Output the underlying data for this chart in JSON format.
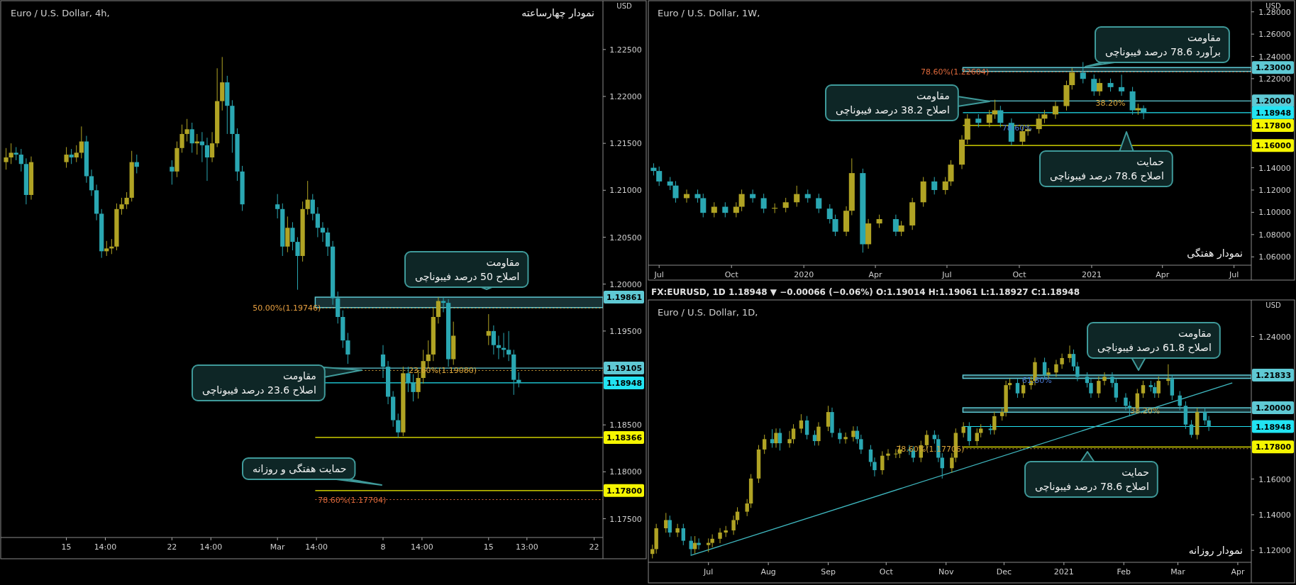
{
  "chart_data": [
    {
      "type": "candlestick",
      "title": "Euro / U.S. Dollar, 4h,",
      "subtitle": "نمودار چهارساعته",
      "ylabel": "USD",
      "x": [
        "2021-02-11T00:00",
        "2021-02-11T08:00",
        "2021-02-11T16:00",
        "2021-02-12T00:00",
        "2021-02-12T08:00",
        "2021-02-12T16:00",
        "2021-02-15T00:00",
        "2021-02-15T08:00",
        "2021-02-15T16:00",
        "2021-02-16T00:00",
        "2021-02-16T08:00",
        "2021-02-16T16:00",
        "2021-02-17T00:00",
        "2021-02-17T08:00",
        "2021-02-17T16:00",
        "2021-02-18T00:00",
        "2021-02-18T08:00",
        "2021-02-18T16:00",
        "2021-02-19T00:00",
        "2021-02-19T08:00",
        "2021-02-19T16:00",
        "2021-02-22T00:00",
        "2021-02-22T08:00",
        "2021-02-22T16:00",
        "2021-02-23T00:00",
        "2021-02-23T08:00",
        "2021-02-23T16:00",
        "2021-02-24T00:00",
        "2021-02-24T08:00",
        "2021-02-24T16:00",
        "2021-02-25T00:00",
        "2021-02-25T08:00",
        "2021-02-25T16:00",
        "2021-02-26T00:00",
        "2021-02-26T08:00",
        "2021-02-26T16:00",
        "2021-03-01T00:00",
        "2021-03-01T08:00",
        "2021-03-01T16:00",
        "2021-03-02T00:00",
        "2021-03-02T08:00",
        "2021-03-02T16:00",
        "2021-03-03T00:00",
        "2021-03-03T08:00",
        "2021-03-03T16:00",
        "2021-03-04T00:00",
        "2021-03-04T08:00",
        "2021-03-04T16:00",
        "2021-03-05T00:00",
        "2021-03-05T08:00",
        "2021-03-05T16:00",
        "2021-03-08T00:00",
        "2021-03-08T08:00",
        "2021-03-08T16:00",
        "2021-03-09T00:00",
        "2021-03-09T08:00",
        "2021-03-09T16:00",
        "2021-03-10T00:00",
        "2021-03-10T08:00",
        "2021-03-10T16:00",
        "2021-03-11T00:00",
        "2021-03-11T08:00",
        "2021-03-11T16:00",
        "2021-03-12T00:00",
        "2021-03-12T08:00",
        "2021-03-12T16:00",
        "2021-03-15T00:00",
        "2021-03-15T08:00",
        "2021-03-15T16:00",
        "2021-03-16T00:00",
        "2021-03-16T08:00",
        "2021-03-16T16:00",
        "2021-03-17T00:00"
      ],
      "ohlc": [
        [
          1.213,
          1.2145,
          1.2122,
          1.2135
        ],
        [
          1.2135,
          1.215,
          1.2128,
          1.214
        ],
        [
          1.214,
          1.2146,
          1.2132,
          1.2138
        ],
        [
          1.2138,
          1.2144,
          1.212,
          1.2128
        ],
        [
          1.2128,
          1.2134,
          1.2085,
          1.2095
        ],
        [
          1.2095,
          1.2136,
          1.209,
          1.213
        ],
        [
          1.213,
          1.2146,
          1.2124,
          1.2138
        ],
        [
          1.2138,
          1.2144,
          1.2128,
          1.2135
        ],
        [
          1.2135,
          1.2148,
          1.213,
          1.214
        ],
        [
          1.214,
          1.2168,
          1.2134,
          1.2152
        ],
        [
          1.2152,
          1.2158,
          1.2108,
          1.2115
        ],
        [
          1.2115,
          1.2122,
          1.2094,
          1.21
        ],
        [
          1.21,
          1.2106,
          1.2068,
          1.2075
        ],
        [
          1.2075,
          1.208,
          1.2028,
          1.2035
        ],
        [
          1.2035,
          1.2046,
          1.203,
          1.2038
        ],
        [
          1.2038,
          1.2048,
          1.2032,
          1.204
        ],
        [
          1.204,
          1.2086,
          1.2036,
          1.208
        ],
        [
          1.208,
          1.2092,
          1.2074,
          1.2085
        ],
        [
          1.2085,
          1.2098,
          1.208,
          1.2092
        ],
        [
          1.2092,
          1.2142,
          1.2088,
          1.213
        ],
        [
          1.213,
          1.2138,
          1.2118,
          1.2125
        ],
        [
          1.2125,
          1.2132,
          1.2106,
          1.212
        ],
        [
          1.212,
          1.2152,
          1.2114,
          1.2145
        ],
        [
          1.2145,
          1.217,
          1.214,
          1.216
        ],
        [
          1.216,
          1.2176,
          1.2152,
          1.2165
        ],
        [
          1.2165,
          1.2172,
          1.214,
          1.215
        ],
        [
          1.215,
          1.216,
          1.2138,
          1.2152
        ],
        [
          1.2152,
          1.2162,
          1.213,
          1.2148
        ],
        [
          1.2148,
          1.2156,
          1.211,
          1.2135
        ],
        [
          1.2135,
          1.2162,
          1.213,
          1.215
        ],
        [
          1.215,
          1.223,
          1.2146,
          1.2195
        ],
        [
          1.2195,
          1.2242,
          1.2185,
          1.2215
        ],
        [
          1.2215,
          1.2222,
          1.216,
          1.219
        ],
        [
          1.219,
          1.2196,
          1.214,
          1.216
        ],
        [
          1.216,
          1.2166,
          1.211,
          1.212
        ],
        [
          1.212,
          1.2126,
          1.2078,
          1.2085
        ],
        [
          1.2085,
          1.2096,
          1.207,
          1.208
        ],
        [
          1.208,
          1.2086,
          1.203,
          1.204
        ],
        [
          1.204,
          1.2072,
          1.2034,
          1.206
        ],
        [
          1.206,
          1.2066,
          1.2036,
          1.2045
        ],
        [
          1.2045,
          1.205,
          1.1994,
          1.203
        ],
        [
          1.203,
          1.2088,
          1.2024,
          1.208
        ],
        [
          1.208,
          1.211,
          1.2074,
          1.209
        ],
        [
          1.209,
          1.2096,
          1.2068,
          1.2075
        ],
        [
          1.2075,
          1.2082,
          1.205,
          1.206
        ],
        [
          1.206,
          1.2066,
          1.2045,
          1.2055
        ],
        [
          1.2055,
          1.206,
          1.203,
          1.204
        ],
        [
          1.204,
          1.2046,
          1.1978,
          1.1985
        ],
        [
          1.1985,
          1.1992,
          1.1958,
          1.1965
        ],
        [
          1.1965,
          1.1972,
          1.1932,
          1.194
        ],
        [
          1.194,
          1.1948,
          1.1915,
          1.1925
        ],
        [
          1.1925,
          1.1935,
          1.19,
          1.1912
        ],
        [
          1.1912,
          1.1918,
          1.1872,
          1.188
        ],
        [
          1.188,
          1.1886,
          1.1848,
          1.1855
        ],
        [
          1.1855,
          1.1862,
          1.18366,
          1.1842
        ],
        [
          1.1842,
          1.1912,
          1.1838,
          1.1905
        ],
        [
          1.1905,
          1.1912,
          1.1885,
          1.1895
        ],
        [
          1.1895,
          1.1904,
          1.1875,
          1.1885
        ],
        [
          1.1885,
          1.1908,
          1.1878,
          1.19
        ],
        [
          1.19,
          1.193,
          1.1894,
          1.1918
        ],
        [
          1.1918,
          1.194,
          1.191,
          1.1925
        ],
        [
          1.1925,
          1.1975,
          1.1918,
          1.1965
        ],
        [
          1.1965,
          1.19861,
          1.1958,
          1.1982
        ],
        [
          1.1982,
          1.1986,
          1.197,
          1.198
        ],
        [
          1.198,
          1.1984,
          1.1912,
          1.192
        ],
        [
          1.192,
          1.196,
          1.1914,
          1.1945
        ],
        [
          1.1945,
          1.1968,
          1.1935,
          1.195
        ],
        [
          1.195,
          1.1956,
          1.1925,
          1.1935
        ],
        [
          1.1935,
          1.1945,
          1.192,
          1.1932
        ],
        [
          1.1932,
          1.1948,
          1.1922,
          1.193
        ],
        [
          1.193,
          1.195,
          1.1918,
          1.1925
        ],
        [
          1.1925,
          1.193,
          1.1882,
          1.1898
        ],
        [
          1.1898,
          1.1906,
          1.189,
          1.18948
        ]
      ],
      "xlim": [
        "2021-02-10T20:00",
        "2021-03-22T14:00"
      ],
      "xticks": [
        {
          "value": "2021-02-15",
          "label": "15"
        },
        {
          "value": "2021-02-17T14:00",
          "label": "14:00"
        },
        {
          "value": "2021-02-22",
          "label": "22"
        },
        {
          "value": "2021-02-24T14:00",
          "label": "14:00"
        },
        {
          "value": "2021-03-01",
          "label": "Mar"
        },
        {
          "value": "2021-03-03T14:00",
          "label": "14:00"
        },
        {
          "value": "2021-03-08",
          "label": "8"
        },
        {
          "value": "2021-03-10T14:00",
          "label": "14:00"
        },
        {
          "value": "2021-03-15",
          "label": "15"
        },
        {
          "value": "2021-03-17T13:00",
          "label": "13:00"
        },
        {
          "value": "2021-03-22",
          "label": "22"
        }
      ],
      "ylim": [
        1.173,
        1.2302
      ],
      "yticks": [
        {
          "value": 1.175,
          "label": "1.17500"
        },
        {
          "value": 1.18,
          "label": "1.18000"
        },
        {
          "value": 1.185,
          "label": "1.18500"
        },
        {
          "value": 1.195,
          "label": "1.19500"
        },
        {
          "value": 1.2,
          "label": "1.20000"
        },
        {
          "value": 1.205,
          "label": "1.20500"
        },
        {
          "value": 1.21,
          "label": "1.21000"
        },
        {
          "value": 1.215,
          "label": "1.21500"
        },
        {
          "value": 1.22,
          "label": "1.22000"
        },
        {
          "value": 1.225,
          "label": "1.22500"
        }
      ],
      "bands": [
        {
          "axis": "y",
          "from": 1.1975,
          "to": 1.19861,
          "label": "1.19861",
          "color": "#5fc9d4"
        }
      ],
      "ref_lines": [
        {
          "axis": "y",
          "value": 1.19105,
          "label": "1.19105",
          "color": "#5fc9d4",
          "line_style": "solid"
        },
        {
          "axis": "y",
          "value": 1.18948,
          "label": "1.18948",
          "color": "#22e3f2",
          "line_style": "solid"
        },
        {
          "axis": "y",
          "value": 1.18366,
          "label": "1.18366",
          "color": "#f5f500",
          "line_style": "solid"
        },
        {
          "axis": "y",
          "value": 1.178,
          "label": "1.17800",
          "color": "#f5f500",
          "line_style": "solid"
        },
        {
          "axis": "y",
          "value": 1.19746,
          "label": "50.00%(1.19746)",
          "color": "#e8a040",
          "line_style": "dotted"
        },
        {
          "axis": "y",
          "value": 1.1908,
          "label": "23.60%(1.19080)",
          "color": "#d9a43a",
          "line_style": "dotted"
        },
        {
          "axis": "y",
          "value": 1.17704,
          "label": "78.60%(1.17704)",
          "color": "#e06a3c",
          "line_style": "dotted"
        }
      ],
      "annotations": [
        "مقاومت\nاصلاح 50 درصد فیبوناچی",
        "مقاومت\nاصلاح 23.6 درصد فیبوناچی",
        "حمایت هفتگی و روزانه"
      ]
    },
    {
      "type": "candlestick",
      "title": "Euro / U.S. Dollar, 1W,",
      "subtitle": "نمودار هفتگی",
      "ylabel": "USD",
      "x": [
        "2019-06-24",
        "2019-07-01",
        "2019-07-15",
        "2019-07-22",
        "2019-08-05",
        "2019-08-19",
        "2019-08-26",
        "2019-09-09",
        "2019-09-23",
        "2019-10-07",
        "2019-10-14",
        "2019-10-28",
        "2019-11-11",
        "2019-11-25",
        "2019-12-09",
        "2019-12-23",
        "2020-01-06",
        "2020-01-20",
        "2020-02-03",
        "2020-02-10",
        "2020-02-24",
        "2020-03-02",
        "2020-03-16",
        "2020-03-23",
        "2020-04-06",
        "2020-04-27",
        "2020-05-04",
        "2020-05-18",
        "2020-06-01",
        "2020-06-15",
        "2020-06-29",
        "2020-07-06",
        "2020-07-20",
        "2020-07-27",
        "2020-08-10",
        "2020-08-24",
        "2020-08-31",
        "2020-09-07",
        "2020-09-21",
        "2020-10-05",
        "2020-10-12",
        "2020-10-26",
        "2020-11-02",
        "2020-11-16",
        "2020-11-30",
        "2020-12-07",
        "2020-12-21",
        "2021-01-04",
        "2021-01-11",
        "2021-01-25",
        "2021-02-08",
        "2021-02-22",
        "2021-03-01",
        "2021-03-08"
      ],
      "ohlc": [
        [
          1.14,
          1.144,
          1.1331,
          1.1371
        ],
        [
          1.1371,
          1.1411,
          1.1237,
          1.1277
        ],
        [
          1.1277,
          1.1317,
          1.12,
          1.124
        ],
        [
          1.124,
          1.128,
          1.1087,
          1.1127
        ],
        [
          1.1127,
          1.1204,
          1.1087,
          1.1164
        ],
        [
          1.1164,
          1.1204,
          1.1087,
          1.1127
        ],
        [
          1.1127,
          1.1167,
          1.0955,
          1.0995
        ],
        [
          1.0995,
          1.109,
          1.0955,
          1.105
        ],
        [
          1.105,
          1.109,
          1.0955,
          1.0995
        ],
        [
          1.0995,
          1.109,
          1.0955,
          1.105
        ],
        [
          1.105,
          1.1204,
          1.101,
          1.1164
        ],
        [
          1.1164,
          1.1204,
          1.1087,
          1.1127
        ],
        [
          1.1127,
          1.1167,
          1.0993,
          1.1033
        ],
        [
          1.1033,
          1.108,
          1.0993,
          1.104
        ],
        [
          1.104,
          1.113,
          1.1,
          1.109
        ],
        [
          1.109,
          1.1239,
          1.105,
          1.1164
        ],
        [
          1.1164,
          1.1204,
          1.1087,
          1.1127
        ],
        [
          1.1127,
          1.1167,
          1.0993,
          1.1033
        ],
        [
          1.1033,
          1.1073,
          1.0899,
          1.0939
        ],
        [
          1.0939,
          1.0979,
          1.0786,
          1.0826
        ],
        [
          1.0826,
          1.1054,
          1.0786,
          1.1014
        ],
        [
          1.1014,
          1.1484,
          1.0974,
          1.1352
        ],
        [
          1.1352,
          1.1392,
          1.0638,
          1.0713
        ],
        [
          1.0713,
          1.094,
          1.0673,
          1.09
        ],
        [
          1.09,
          1.0979,
          1.086,
          1.0939
        ],
        [
          1.0939,
          1.0979,
          1.0786,
          1.0826
        ],
        [
          1.0826,
          1.0922,
          1.0786,
          1.0882
        ],
        [
          1.0882,
          1.113,
          1.0842,
          1.109
        ],
        [
          1.109,
          1.1317,
          1.105,
          1.1277
        ],
        [
          1.1277,
          1.1317,
          1.116,
          1.12
        ],
        [
          1.12,
          1.1317,
          1.116,
          1.1277
        ],
        [
          1.1277,
          1.1468,
          1.1237,
          1.1428
        ],
        [
          1.1428,
          1.1693,
          1.1388,
          1.1653
        ],
        [
          1.1653,
          1.1881,
          1.1613,
          1.1841
        ],
        [
          1.1841,
          1.1881,
          1.1763,
          1.1803
        ],
        [
          1.1803,
          1.1919,
          1.1763,
          1.1879
        ],
        [
          1.1879,
          1.2011,
          1.1839,
          1.1916
        ],
        [
          1.1916,
          1.1956,
          1.1763,
          1.1803
        ],
        [
          1.1803,
          1.1843,
          1.16,
          1.1634
        ],
        [
          1.1634,
          1.1768,
          1.1594,
          1.1728
        ],
        [
          1.1728,
          1.1787,
          1.1688,
          1.1747
        ],
        [
          1.1747,
          1.1881,
          1.1707,
          1.1841
        ],
        [
          1.1841,
          1.1919,
          1.1801,
          1.1879
        ],
        [
          1.1879,
          1.1994,
          1.1839,
          1.1954
        ],
        [
          1.1954,
          1.2182,
          1.1914,
          1.2142
        ],
        [
          1.2142,
          1.2295,
          1.2102,
          1.2255
        ],
        [
          1.2255,
          1.2349,
          1.2158,
          1.2198
        ],
        [
          1.2198,
          1.2238,
          1.2046,
          1.2086
        ],
        [
          1.2086,
          1.2201,
          1.2046,
          1.2161
        ],
        [
          1.2161,
          1.2201,
          1.2084,
          1.2124
        ],
        [
          1.2124,
          1.2236,
          1.2046,
          1.2086
        ],
        [
          1.2086,
          1.2126,
          1.1876,
          1.1916
        ],
        [
          1.1916,
          1.1975,
          1.1876,
          1.1935
        ],
        [
          1.1935,
          1.196,
          1.1836,
          1.18948
        ]
      ],
      "xlim": [
        "2019-06-20",
        "2021-07-23"
      ],
      "xticks": [
        {
          "value": "2019-07-01",
          "label": "Jul"
        },
        {
          "value": "2019-10-01",
          "label": "Oct"
        },
        {
          "value": "2020-01-01",
          "label": "2020"
        },
        {
          "value": "2020-04-01",
          "label": "Apr"
        },
        {
          "value": "2020-07-01",
          "label": "Jul"
        },
        {
          "value": "2020-10-01",
          "label": "Oct"
        },
        {
          "value": "2021-01-01",
          "label": "2021"
        },
        {
          "value": "2021-04-01",
          "label": "Apr"
        },
        {
          "value": "2021-07-01",
          "label": "Jul"
        }
      ],
      "ylim": [
        1.0525,
        1.29
      ],
      "yticks": [
        {
          "value": 1.06,
          "label": "1.06000"
        },
        {
          "value": 1.08,
          "label": "1.08000"
        },
        {
          "value": 1.1,
          "label": "1.10000"
        },
        {
          "value": 1.12,
          "label": "1.12000"
        },
        {
          "value": 1.14,
          "label": "1.14000"
        },
        {
          "value": 1.22,
          "label": "1.22000"
        },
        {
          "value": 1.24,
          "label": "1.24000"
        },
        {
          "value": 1.26,
          "label": "1.26000"
        },
        {
          "value": 1.28,
          "label": "1.28000"
        }
      ],
      "bands": [
        {
          "axis": "y",
          "from": 1.2265,
          "to": 1.23,
          "label": "1.23000",
          "color": "#5fc9d4"
        }
      ],
      "ref_lines": [
        {
          "axis": "y",
          "value": 1.2,
          "label": "1.20000",
          "color": "#5fc9d4",
          "line_style": "solid"
        },
        {
          "axis": "y",
          "value": 1.18948,
          "label": "1.18948",
          "color": "#22e3f2",
          "line_style": "solid"
        },
        {
          "axis": "y",
          "value": 1.178,
          "label": "1.17800",
          "color": "#f5f500",
          "line_style": "solid"
        },
        {
          "axis": "y",
          "value": 1.16,
          "label": "1.16000",
          "color": "#f5f500",
          "line_style": "solid"
        },
        {
          "axis": "y",
          "value": 1.22604,
          "label": "78.60%(1.22604)",
          "color": "#e06a3c",
          "line_style": "dotted"
        }
      ],
      "annotations": [
        "مقاومت\nبرآورد 78.6 درصد فیبوناچی",
        "مقاومت\nاصلاح 38.2 درصد فیبوناچی",
        "حمایت\nاصلاح 78.6 درصد فیبوناچی",
        {
          "text": "38.20%",
          "x": "2021-01-25",
          "y": 1.198
        },
        {
          "text": "78.60%",
          "x": "2020-09-28",
          "y": 1.176
        }
      ]
    },
    {
      "type": "candlestick",
      "title": "Euro / U.S. Dollar, 1D,",
      "subtitle": "نمودار روزانه",
      "ylabel": "USD",
      "x": [
        "2020-06-02",
        "2020-06-04",
        "2020-06-09",
        "2020-06-11",
        "2020-06-15",
        "2020-06-18",
        "2020-06-22",
        "2020-06-24",
        "2020-06-26",
        "2020-07-01",
        "2020-07-03",
        "2020-07-07",
        "2020-07-10",
        "2020-07-14",
        "2020-07-16",
        "2020-07-21",
        "2020-07-23",
        "2020-07-27",
        "2020-07-30",
        "2020-08-03",
        "2020-08-05",
        "2020-08-07",
        "2020-08-12",
        "2020-08-14",
        "2020-08-18",
        "2020-08-21",
        "2020-08-25",
        "2020-08-27",
        "2020-09-01",
        "2020-09-03",
        "2020-09-07",
        "2020-09-10",
        "2020-09-14",
        "2020-09-16",
        "2020-09-18",
        "2020-09-23",
        "2020-09-25",
        "2020-09-29",
        "2020-10-02",
        "2020-10-06",
        "2020-10-08",
        "2020-10-13",
        "2020-10-15",
        "2020-10-19",
        "2020-10-22",
        "2020-10-26",
        "2020-10-28",
        "2020-10-30",
        "2020-11-04",
        "2020-11-06",
        "2020-11-10",
        "2020-11-13",
        "2020-11-17",
        "2020-11-19",
        "2020-11-24",
        "2020-11-26",
        "2020-11-30",
        "2020-12-02",
        "2020-12-04",
        "2020-12-08",
        "2020-12-11",
        "2020-12-15",
        "2020-12-17",
        "2020-12-22",
        "2020-12-24",
        "2020-12-28",
        "2020-12-31",
        "2021-01-04",
        "2021-01-06",
        "2021-01-08",
        "2021-01-13",
        "2021-01-15",
        "2021-01-19",
        "2021-01-22",
        "2021-01-26",
        "2021-01-28",
        "2021-02-02",
        "2021-02-04",
        "2021-02-08",
        "2021-02-11",
        "2021-02-15",
        "2021-02-17",
        "2021-02-19",
        "2021-02-24",
        "2021-02-26",
        "2021-03-02",
        "2021-03-05",
        "2021-03-08",
        "2021-03-11",
        "2021-03-15",
        "2021-03-17"
      ],
      "ohlc": [
        [
          1.118,
          1.1232,
          1.1155,
          1.1207
        ],
        [
          1.1207,
          1.1349,
          1.1182,
          1.1324
        ],
        [
          1.1324,
          1.141,
          1.1299,
          1.137
        ],
        [
          1.137,
          1.1395,
          1.1275,
          1.13
        ],
        [
          1.13,
          1.1349,
          1.1275,
          1.1324
        ],
        [
          1.1324,
          1.1349,
          1.1229,
          1.1254
        ],
        [
          1.1254,
          1.1279,
          1.1172,
          1.1207
        ],
        [
          1.1207,
          1.128,
          1.1182,
          1.1242
        ],
        [
          1.1242,
          1.1267,
          1.1205,
          1.123
        ],
        [
          1.123,
          1.1267,
          1.119,
          1.1242
        ],
        [
          1.1242,
          1.129,
          1.1217,
          1.1265
        ],
        [
          1.1265,
          1.1325,
          1.124,
          1.13
        ],
        [
          1.13,
          1.1337,
          1.1275,
          1.1312
        ],
        [
          1.1312,
          1.1395,
          1.1287,
          1.137
        ],
        [
          1.137,
          1.1442,
          1.1345,
          1.1417
        ],
        [
          1.1417,
          1.1488,
          1.1392,
          1.1463
        ],
        [
          1.1463,
          1.1628,
          1.1438,
          1.1603
        ],
        [
          1.1603,
          1.1791,
          1.1578,
          1.1766
        ],
        [
          1.1766,
          1.1849,
          1.1741,
          1.1824
        ],
        [
          1.1824,
          1.188,
          1.1776,
          1.1801
        ],
        [
          1.1801,
          1.1884,
          1.1776,
          1.1859
        ],
        [
          1.1859,
          1.1884,
          1.176,
          1.1801
        ],
        [
          1.1801,
          1.187,
          1.1776,
          1.1824
        ],
        [
          1.1824,
          1.1908,
          1.1799,
          1.1883
        ],
        [
          1.1883,
          1.1964,
          1.1858,
          1.1929
        ],
        [
          1.1929,
          1.1954,
          1.1823,
          1.1848
        ],
        [
          1.1848,
          1.1873,
          1.1788,
          1.1813
        ],
        [
          1.1813,
          1.1919,
          1.1788,
          1.1894
        ],
        [
          1.1894,
          1.2011,
          1.1869,
          1.1976
        ],
        [
          1.1976,
          1.2001,
          1.1834,
          1.1859
        ],
        [
          1.1859,
          1.1884,
          1.1799,
          1.1824
        ],
        [
          1.1824,
          1.1861,
          1.1799,
          1.1836
        ],
        [
          1.1836,
          1.1896,
          1.1811,
          1.1871
        ],
        [
          1.1871,
          1.1896,
          1.1799,
          1.1824
        ],
        [
          1.1824,
          1.1849,
          1.1741,
          1.1766
        ],
        [
          1.1766,
          1.1791,
          1.1671,
          1.1696
        ],
        [
          1.1696,
          1.1721,
          1.1615,
          1.165
        ],
        [
          1.165,
          1.1756,
          1.1625,
          1.1731
        ],
        [
          1.1731,
          1.1768,
          1.1706,
          1.1743
        ],
        [
          1.1743,
          1.1768,
          1.1718,
          1.1743
        ],
        [
          1.1743,
          1.1791,
          1.1718,
          1.1766
        ],
        [
          1.1766,
          1.1791,
          1.1735,
          1.176
        ],
        [
          1.176,
          1.1785,
          1.1695,
          1.172
        ],
        [
          1.172,
          1.1815,
          1.1695,
          1.179
        ],
        [
          1.179,
          1.1873,
          1.1765,
          1.1848
        ],
        [
          1.1848,
          1.1873,
          1.1799,
          1.1824
        ],
        [
          1.1824,
          1.1849,
          1.1695,
          1.172
        ],
        [
          1.172,
          1.1745,
          1.1603,
          1.1661
        ],
        [
          1.1661,
          1.1745,
          1.1636,
          1.172
        ],
        [
          1.172,
          1.1884,
          1.1695,
          1.1859
        ],
        [
          1.1859,
          1.1919,
          1.1834,
          1.1894
        ],
        [
          1.1894,
          1.1919,
          1.1788,
          1.1813
        ],
        [
          1.1813,
          1.1884,
          1.1788,
          1.1859
        ],
        [
          1.1859,
          1.1908,
          1.1834,
          1.1883
        ],
        [
          1.1883,
          1.1908,
          1.185,
          1.1875
        ],
        [
          1.1875,
          1.1978,
          1.185,
          1.1953
        ],
        [
          1.1953,
          1.2001,
          1.1928,
          1.1976
        ],
        [
          1.1976,
          1.2152,
          1.1951,
          1.2127
        ],
        [
          1.2127,
          1.2164,
          1.2102,
          1.2139
        ],
        [
          1.2139,
          1.2164,
          1.2056,
          1.2081
        ],
        [
          1.2081,
          1.2152,
          1.2056,
          1.2127
        ],
        [
          1.2127,
          1.2176,
          1.2102,
          1.2151
        ],
        [
          1.2151,
          1.2281,
          1.2126,
          1.2256
        ],
        [
          1.2256,
          1.2281,
          1.2161,
          1.2186
        ],
        [
          1.2186,
          1.2223,
          1.2161,
          1.2198
        ],
        [
          1.2198,
          1.2269,
          1.2173,
          1.2244
        ],
        [
          1.2244,
          1.2304,
          1.2219,
          1.2279
        ],
        [
          1.2279,
          1.2349,
          1.2254,
          1.2302
        ],
        [
          1.2302,
          1.2327,
          1.2207,
          1.2232
        ],
        [
          1.2232,
          1.2257,
          1.2149,
          1.2174
        ],
        [
          1.2174,
          1.2199,
          1.2114,
          1.2139
        ],
        [
          1.2139,
          1.2164,
          1.2056,
          1.2081
        ],
        [
          1.2081,
          1.2176,
          1.2056,
          1.2151
        ],
        [
          1.2151,
          1.2199,
          1.2126,
          1.2174
        ],
        [
          1.2174,
          1.2199,
          1.2114,
          1.2139
        ],
        [
          1.2139,
          1.2164,
          1.2032,
          1.2057
        ],
        [
          1.2057,
          1.2082,
          1.1986,
          1.2011
        ],
        [
          1.2011,
          1.2036,
          1.1952,
          1.1999
        ],
        [
          1.1999,
          1.2106,
          1.1974,
          1.2081
        ],
        [
          1.2081,
          1.2152,
          1.2056,
          1.2127
        ],
        [
          1.2127,
          1.2152,
          1.2091,
          1.2116
        ],
        [
          1.2116,
          1.2141,
          1.2056,
          1.2081
        ],
        [
          1.2081,
          1.2176,
          1.2056,
          1.2151
        ],
        [
          1.2151,
          1.2244,
          1.2126,
          1.2162
        ],
        [
          1.2162,
          1.2187,
          1.2044,
          1.2069
        ],
        [
          1.2069,
          1.2094,
          1.1986,
          1.2011
        ],
        [
          1.2011,
          1.2036,
          1.1881,
          1.1906
        ],
        [
          1.1906,
          1.1931,
          1.1832,
          1.1848
        ],
        [
          1.1848,
          1.1999,
          1.1823,
          1.1976
        ],
        [
          1.1976,
          1.2001,
          1.1904,
          1.1929
        ],
        [
          1.1929,
          1.1954,
          1.187,
          1.18948
        ]
      ],
      "series": [
        {
          "type": "line",
          "x": [
            "2020-06-22",
            "2021-03-29"
          ],
          "values": [
            1.1172,
            1.2139
          ],
          "color": "#3fb8c0"
        }
      ],
      "xlim": [
        "2020-06-01",
        "2021-04-08"
      ],
      "xticks": [
        {
          "value": "2020-07-01",
          "label": "Jul"
        },
        {
          "value": "2020-08-01",
          "label": "Aug"
        },
        {
          "value": "2020-09-01",
          "label": "Sep"
        },
        {
          "value": "2020-10-01",
          "label": "Oct"
        },
        {
          "value": "2020-11-01",
          "label": "Nov"
        },
        {
          "value": "2020-12-01",
          "label": "Dec"
        },
        {
          "value": "2021-01-01",
          "label": "2021"
        },
        {
          "value": "2021-02-01",
          "label": "Feb"
        },
        {
          "value": "2021-03-01",
          "label": "Mar"
        },
        {
          "value": "2021-04-01",
          "label": "Apr"
        }
      ],
      "ylim": [
        1.1133,
        1.2605
      ],
      "yticks": [
        {
          "value": 1.12,
          "label": "1.12000"
        },
        {
          "value": 1.14,
          "label": "1.14000"
        },
        {
          "value": 1.16,
          "label": "1.16000"
        },
        {
          "value": 1.24,
          "label": "1.24000"
        }
      ],
      "bands": [
        {
          "axis": "y",
          "from": 1.1975,
          "to": 1.2,
          "label": "1.20000",
          "color": "#5fc9d4"
        },
        {
          "axis": "y",
          "from": 1.2165,
          "to": 1.21833,
          "label": "1.21833",
          "color": "#5fc9d4"
        }
      ],
      "ref_lines": [
        {
          "axis": "y",
          "value": 1.18948,
          "label": "1.18948",
          "color": "#22e3f2",
          "line_style": "solid"
        },
        {
          "axis": "y",
          "value": 1.178,
          "label": "1.17800",
          "color": "#f5f500",
          "line_style": "solid"
        },
        {
          "axis": "y",
          "value": 1.17706,
          "label": "78.60%(1.17706)",
          "color": "#d9a43a",
          "line_style": "dotted"
        }
      ],
      "annotations": [
        "FX:EURUSD, 1D  1.18948 ▼ −0.00066 (−0.06%)  O:1.19014  H:1.19061  L:1.18927  C:1.18948",
        "مقاومت\nاصلاح 61.8 درصد فیبوناچی",
        "حمایت\nاصلاح 78.6 درصد فیبوناچی",
        {
          "text": "61.80%",
          "x": "2020-12-18",
          "y": 1.2155
        },
        {
          "text": "38.20%",
          "x": "2021-02-12",
          "y": 1.1985
        }
      ]
    }
  ]
}
